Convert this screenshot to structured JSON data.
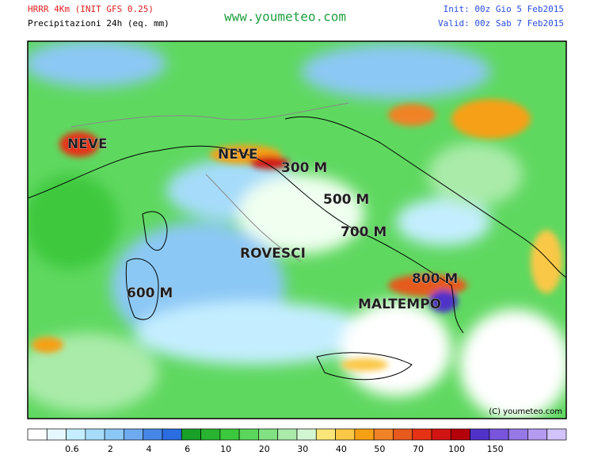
{
  "header": {
    "model": "HRRR 4Km (INIT GFS 0.25)",
    "field": "Precipitazioni 24h (eq. mm)",
    "site": "www.youmeteo.com",
    "init": "Init: 00z Gio  5  Feb2015",
    "valid": "Valid: 00z Sab  7  Feb2015"
  },
  "map": {
    "annotations": [
      "NEVE",
      "NEVE",
      "300 M",
      "500 M",
      "700 M",
      "ROVESCI",
      "800 M",
      "600 M",
      "MALTEMPO"
    ],
    "copyright": "(C) youmeteo.com"
  },
  "legend": {
    "labels": [
      "0.6",
      "2",
      "4",
      "6",
      "10",
      "20",
      "30",
      "40",
      "50",
      "70",
      "100",
      "150"
    ],
    "colors": [
      "#ffffff",
      "#e6f8ff",
      "#c4eeff",
      "#a6dcfa",
      "#8cc8f5",
      "#6eaaf0",
      "#4686e6",
      "#2a6de0",
      "#18a028",
      "#28b430",
      "#3cc83c",
      "#5ad75a",
      "#82e182",
      "#aaebaa",
      "#d2f5d2",
      "#fae678",
      "#fac846",
      "#f5a014",
      "#f08228",
      "#e65a1e",
      "#e63214",
      "#d21414",
      "#b4000a",
      "#5032c8",
      "#7855dc",
      "#9678e6",
      "#b49bf0",
      "#d2c3fa"
    ]
  }
}
